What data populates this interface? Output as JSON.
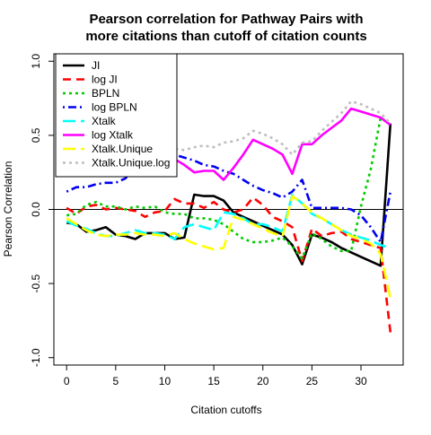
{
  "chart_data": {
    "type": "line",
    "title": [
      "Pearson correlation for Pathway Pairs with",
      "more citations than cutoff of citation counts"
    ],
    "xlabel": "Citation cutoffs",
    "ylabel": "Pearson Correlation",
    "xlim": [
      -1.3,
      34.3
    ],
    "ylim": [
      -1.05,
      1.05
    ],
    "xticks": [
      0,
      5,
      10,
      15,
      20,
      25,
      30
    ],
    "yticks": [
      -1.0,
      -0.5,
      0.0,
      0.5,
      1.0
    ],
    "ytick_labels": [
      "-1.0",
      "-0.5",
      "0.0",
      "0.5",
      "1.0"
    ],
    "reference_line": 0,
    "grid": false,
    "legend_position": "top-left",
    "series": [
      {
        "name": "JI",
        "color": "#000000",
        "dash": "solid",
        "x": [
          0,
          1,
          2,
          3,
          4,
          5,
          6,
          7,
          8,
          9,
          10,
          11,
          12,
          13,
          14,
          15,
          16,
          17,
          18,
          19,
          20,
          21,
          22,
          23,
          24,
          25,
          26,
          27,
          28,
          29,
          30,
          31,
          32,
          33
        ],
        "y": [
          -0.09,
          -0.1,
          -0.15,
          -0.14,
          -0.12,
          -0.17,
          -0.18,
          -0.2,
          -0.16,
          -0.16,
          -0.16,
          -0.2,
          -0.19,
          0.1,
          0.09,
          0.09,
          0.06,
          -0.02,
          -0.05,
          -0.08,
          -0.11,
          -0.14,
          -0.17,
          -0.24,
          -0.37,
          -0.17,
          -0.19,
          -0.22,
          -0.26,
          -0.29,
          -0.32,
          -0.35,
          -0.38,
          0.58
        ]
      },
      {
        "name": "log JI",
        "color": "#ff0000",
        "dash": "dashed",
        "x": [
          0,
          1,
          2,
          3,
          4,
          5,
          6,
          7,
          8,
          9,
          10,
          11,
          12,
          13,
          14,
          15,
          16,
          17,
          18,
          19,
          20,
          21,
          22,
          23,
          24,
          25,
          26,
          27,
          28,
          29,
          30,
          31,
          32,
          33
        ],
        "y": [
          0.01,
          -0.03,
          0.02,
          0.03,
          0.0,
          0.01,
          0.0,
          -0.01,
          -0.05,
          -0.02,
          -0.01,
          0.07,
          0.04,
          0.04,
          0.01,
          0.05,
          0.0,
          -0.02,
          0.0,
          0.08,
          0.03,
          -0.05,
          -0.08,
          -0.12,
          -0.35,
          -0.13,
          -0.18,
          -0.16,
          -0.15,
          -0.2,
          -0.22,
          -0.24,
          -0.26,
          -0.83
        ]
      },
      {
        "name": "BPLN",
        "color": "#00cc00",
        "dash": "dotted",
        "x": [
          0,
          1,
          2,
          3,
          4,
          5,
          6,
          7,
          8,
          9,
          10,
          11,
          12,
          13,
          14,
          15,
          16,
          17,
          18,
          19,
          20,
          21,
          22,
          23,
          24,
          25,
          26,
          27,
          28,
          29,
          30,
          31,
          32,
          33
        ],
        "y": [
          -0.04,
          -0.03,
          0.03,
          0.05,
          0.02,
          0.02,
          0.0,
          0.02,
          0.01,
          0.02,
          -0.02,
          -0.03,
          -0.03,
          -0.06,
          -0.06,
          -0.07,
          -0.1,
          -0.15,
          -0.2,
          -0.22,
          -0.22,
          -0.21,
          -0.19,
          -0.25,
          -0.33,
          -0.16,
          -0.2,
          -0.25,
          -0.28,
          -0.28,
          0.02,
          0.27,
          0.62,
          0.57
        ]
      },
      {
        "name": "log BPLN",
        "color": "#0000ee",
        "dash": "dotdash",
        "x": [
          0,
          1,
          2,
          3,
          4,
          5,
          6,
          7,
          8,
          9,
          10,
          11,
          12,
          13,
          14,
          15,
          16,
          17,
          18,
          19,
          20,
          21,
          22,
          23,
          24,
          25,
          26,
          27,
          28,
          29,
          30,
          31,
          32,
          33
        ],
        "y": [
          0.12,
          0.15,
          0.15,
          0.17,
          0.18,
          0.18,
          0.21,
          0.3,
          0.35,
          0.37,
          0.38,
          0.37,
          0.35,
          0.33,
          0.3,
          0.29,
          0.26,
          0.24,
          0.2,
          0.16,
          0.13,
          0.11,
          0.08,
          0.12,
          0.2,
          0.01,
          0.01,
          0.01,
          0.01,
          0.0,
          -0.04,
          -0.12,
          -0.22,
          0.12
        ]
      },
      {
        "name": "Xtalk",
        "color": "#00ffff",
        "dash": "longdash",
        "x": [
          0,
          1,
          2,
          3,
          4,
          5,
          6,
          7,
          8,
          9,
          10,
          11,
          12,
          13,
          14,
          15,
          16,
          17,
          18,
          19,
          20,
          21,
          22,
          23,
          24,
          25,
          26,
          27,
          28,
          29,
          30,
          31,
          32,
          33
        ],
        "y": [
          -0.08,
          -0.11,
          -0.13,
          -0.16,
          -0.18,
          -0.18,
          -0.16,
          -0.14,
          -0.16,
          -0.16,
          -0.17,
          -0.2,
          -0.12,
          -0.1,
          -0.12,
          -0.14,
          -0.02,
          -0.03,
          -0.06,
          -0.1,
          -0.1,
          -0.12,
          -0.15,
          0.1,
          0.04,
          -0.03,
          -0.06,
          -0.1,
          -0.14,
          -0.17,
          -0.19,
          -0.21,
          -0.24,
          -0.26
        ]
      },
      {
        "name": "log Xtalk",
        "color": "#ff00ff",
        "dash": "solid",
        "x": [
          0,
          1,
          2,
          3,
          4,
          5,
          6,
          7,
          8,
          9,
          10,
          11,
          12,
          13,
          14,
          15,
          16,
          17,
          18,
          19,
          20,
          21,
          22,
          23,
          24,
          25,
          26,
          27,
          28,
          29,
          30,
          31,
          32,
          33
        ],
        "y": [
          0.24,
          0.26,
          0.28,
          0.29,
          0.3,
          0.3,
          0.3,
          0.3,
          0.31,
          0.33,
          0.32,
          0.34,
          0.3,
          0.25,
          0.26,
          0.26,
          0.2,
          0.28,
          0.37,
          0.47,
          0.44,
          0.41,
          0.37,
          0.24,
          0.44,
          0.44,
          0.5,
          0.55,
          0.6,
          0.68,
          0.66,
          0.64,
          0.62,
          0.57
        ]
      },
      {
        "name": "Xtalk.Unique",
        "color": "#ffff00",
        "dash": "longdash",
        "x": [
          0,
          1,
          2,
          3,
          4,
          5,
          6,
          7,
          8,
          9,
          10,
          11,
          12,
          13,
          14,
          15,
          16,
          17,
          18,
          19,
          20,
          21,
          22,
          23,
          24,
          25,
          26,
          27,
          28,
          29,
          30,
          31,
          32,
          33
        ],
        "y": [
          -0.06,
          -0.1,
          -0.14,
          -0.17,
          -0.18,
          -0.17,
          -0.17,
          -0.16,
          -0.17,
          -0.17,
          -0.18,
          -0.16,
          -0.2,
          -0.23,
          -0.25,
          -0.27,
          -0.26,
          -0.05,
          -0.07,
          -0.1,
          -0.13,
          -0.16,
          -0.18,
          0.09,
          0.04,
          -0.02,
          -0.06,
          -0.1,
          -0.14,
          -0.18,
          -0.2,
          -0.23,
          -0.3,
          -0.6
        ]
      },
      {
        "name": "Xtalk.Unique.log",
        "color": "#bebebe",
        "dash": "dotted",
        "x": [
          0,
          1,
          2,
          3,
          4,
          5,
          6,
          7,
          8,
          9,
          10,
          11,
          12,
          13,
          14,
          15,
          16,
          17,
          18,
          19,
          20,
          21,
          22,
          23,
          24,
          25,
          26,
          27,
          28,
          29,
          30,
          31,
          32,
          33
        ],
        "y": [
          0.26,
          0.29,
          0.31,
          0.31,
          0.3,
          0.3,
          0.3,
          0.32,
          0.35,
          0.37,
          0.4,
          0.41,
          0.4,
          0.42,
          0.43,
          0.42,
          0.45,
          0.46,
          0.48,
          0.53,
          0.51,
          0.48,
          0.44,
          0.37,
          0.45,
          0.46,
          0.53,
          0.59,
          0.65,
          0.73,
          0.71,
          0.68,
          0.65,
          0.58
        ]
      }
    ]
  }
}
